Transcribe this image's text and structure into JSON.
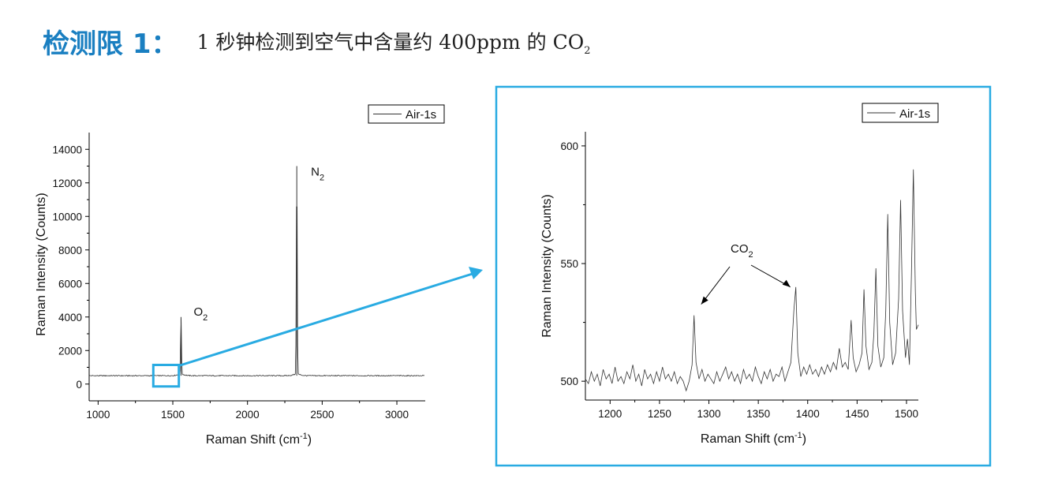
{
  "header": {
    "title_bold": "检测限 1：",
    "subtitle_prefix": "1 秒钟检测到空气中含量约 400ppm 的 CO",
    "subtitle_subscript": "2"
  },
  "colors": {
    "accent": "#1a7fc1",
    "highlight": "#29abe2",
    "line": "#333333"
  },
  "chart_data": [
    {
      "type": "line",
      "xlabel_main": "Raman Shift (cm",
      "xlabel_sup": "-1",
      "xlabel_end": ")",
      "ylabel": "Raman Intensity (Counts)",
      "xlim": [
        940,
        3190
      ],
      "ylim": [
        -1000,
        15000
      ],
      "xticks": [
        1000,
        1500,
        2000,
        2500,
        3000
      ],
      "yticks": [
        0,
        2000,
        4000,
        6000,
        8000,
        10000,
        12000,
        14000
      ],
      "legend": "Air-1s",
      "legend_position": "top-right",
      "baseline": 500,
      "peaks": [
        {
          "x": 1555,
          "y": 4000,
          "label_main": "O",
          "label_sub": "2"
        },
        {
          "x": 2330,
          "y": 13000,
          "label_main": "N",
          "label_sub": "2"
        }
      ],
      "zoom_region": {
        "x": [
          1380,
          1530
        ],
        "y": [
          0,
          1000
        ]
      }
    },
    {
      "type": "line",
      "xlabel_main": "Raman Shift (cm",
      "xlabel_sup": "-1",
      "xlabel_end": ")",
      "ylabel": "Raman Intensity (Counts)",
      "xlim": [
        1175,
        1512
      ],
      "ylim": [
        492,
        606
      ],
      "xticks": [
        1200,
        1250,
        1300,
        1350,
        1400,
        1450,
        1500
      ],
      "yticks": [
        500,
        550,
        600
      ],
      "legend": "Air-1s",
      "legend_position": "top-right",
      "annotation": {
        "label_main": "CO",
        "label_sub": "2",
        "targets_x": [
          1285,
          1388
        ]
      },
      "series_points": [
        [
          1175,
          501
        ],
        [
          1178,
          499
        ],
        [
          1181,
          504
        ],
        [
          1184,
          500
        ],
        [
          1187,
          503
        ],
        [
          1190,
          498
        ],
        [
          1193,
          505
        ],
        [
          1196,
          501
        ],
        [
          1199,
          503
        ],
        [
          1202,
          499
        ],
        [
          1205,
          506
        ],
        [
          1208,
          500
        ],
        [
          1211,
          502
        ],
        [
          1214,
          499
        ],
        [
          1217,
          504
        ],
        [
          1220,
          501
        ],
        [
          1223,
          507
        ],
        [
          1226,
          500
        ],
        [
          1229,
          503
        ],
        [
          1232,
          498
        ],
        [
          1235,
          505
        ],
        [
          1238,
          501
        ],
        [
          1241,
          503
        ],
        [
          1244,
          499
        ],
        [
          1247,
          504
        ],
        [
          1250,
          500
        ],
        [
          1253,
          506
        ],
        [
          1256,
          501
        ],
        [
          1259,
          503
        ],
        [
          1262,
          500
        ],
        [
          1265,
          504
        ],
        [
          1268,
          499
        ],
        [
          1271,
          502
        ],
        [
          1274,
          500
        ],
        [
          1277,
          496
        ],
        [
          1280,
          500
        ],
        [
          1283,
          507
        ],
        [
          1285,
          528
        ],
        [
          1287,
          508
        ],
        [
          1290,
          501
        ],
        [
          1293,
          505
        ],
        [
          1296,
          500
        ],
        [
          1299,
          503
        ],
        [
          1302,
          501
        ],
        [
          1305,
          499
        ],
        [
          1308,
          504
        ],
        [
          1311,
          500
        ],
        [
          1314,
          503
        ],
        [
          1317,
          506
        ],
        [
          1320,
          501
        ],
        [
          1323,
          504
        ],
        [
          1326,
          500
        ],
        [
          1329,
          503
        ],
        [
          1332,
          499
        ],
        [
          1335,
          505
        ],
        [
          1338,
          501
        ],
        [
          1341,
          503
        ],
        [
          1344,
          500
        ],
        [
          1347,
          506
        ],
        [
          1350,
          502
        ],
        [
          1353,
          499
        ],
        [
          1356,
          504
        ],
        [
          1359,
          501
        ],
        [
          1362,
          505
        ],
        [
          1365,
          500
        ],
        [
          1368,
          503
        ],
        [
          1371,
          502
        ],
        [
          1374,
          506
        ],
        [
          1377,
          500
        ],
        [
          1380,
          504
        ],
        [
          1383,
          508
        ],
        [
          1386,
          530
        ],
        [
          1388,
          540
        ],
        [
          1390,
          512
        ],
        [
          1393,
          502
        ],
        [
          1396,
          506
        ],
        [
          1399,
          503
        ],
        [
          1402,
          507
        ],
        [
          1405,
          503
        ],
        [
          1408,
          505
        ],
        [
          1411,
          502
        ],
        [
          1414,
          506
        ],
        [
          1417,
          503
        ],
        [
          1420,
          507
        ],
        [
          1423,
          504
        ],
        [
          1426,
          508
        ],
        [
          1429,
          505
        ],
        [
          1432,
          514
        ],
        [
          1435,
          506
        ],
        [
          1438,
          508
        ],
        [
          1441,
          505
        ],
        [
          1444,
          526
        ],
        [
          1446,
          510
        ],
        [
          1449,
          504
        ],
        [
          1452,
          507
        ],
        [
          1455,
          512
        ],
        [
          1457,
          539
        ],
        [
          1459,
          515
        ],
        [
          1462,
          505
        ],
        [
          1465,
          508
        ],
        [
          1467,
          520
        ],
        [
          1469,
          548
        ],
        [
          1471,
          515
        ],
        [
          1474,
          506
        ],
        [
          1477,
          510
        ],
        [
          1479,
          530
        ],
        [
          1481,
          571
        ],
        [
          1483,
          525
        ],
        [
          1486,
          507
        ],
        [
          1489,
          512
        ],
        [
          1492,
          535
        ],
        [
          1494,
          577
        ],
        [
          1496,
          530
        ],
        [
          1499,
          510
        ],
        [
          1501,
          518
        ],
        [
          1503,
          507
        ],
        [
          1505,
          545
        ],
        [
          1507,
          590
        ],
        [
          1509,
          538
        ],
        [
          1510,
          522
        ],
        [
          1512,
          524
        ]
      ]
    }
  ]
}
